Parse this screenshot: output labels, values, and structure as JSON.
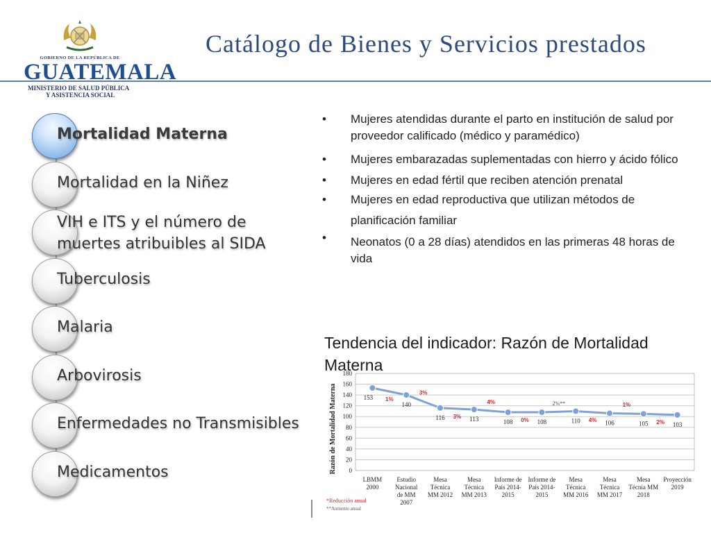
{
  "header": {
    "title": "Catálogo de Bienes y Servicios prestados",
    "logo": {
      "gov": "GOBIERNO DE LA REPÚBLICA DE",
      "name": "GUATEMALA",
      "ministry_line1": "MINISTERIO DE SALUD PÚBLICA",
      "ministry_line2": "Y ASISTENCIA SOCIAL"
    }
  },
  "menu": {
    "items": [
      {
        "label": "Mortalidad Materna",
        "active": true
      },
      {
        "label": "Mortalidad en la Niñez",
        "active": false
      },
      {
        "label": "VIH e ITS y el número de muertes atribuibles al SIDA",
        "line1": "VIH e ITS y el número de",
        "line2": "muertes atribuibles al SIDA",
        "active": false
      },
      {
        "label": "Tuberculosis",
        "active": false
      },
      {
        "label": "Malaria",
        "active": false
      },
      {
        "label": "Arbovirosis",
        "active": false
      },
      {
        "label": "Enfermedades no Transmisibles",
        "active": false
      },
      {
        "label": "Medicamentos",
        "active": false
      }
    ]
  },
  "bullets": [
    "Mujeres atendidas durante el parto en institución de salud por proveedor calificado (médico y paramédico)",
    "Mujeres embarazadas suplementadas con hierro y ácido fólico",
    "Mujeres en edad fértil que reciben atención prenatal",
    "Mujeres en edad reproductiva que utilizan métodos de planificación familiar",
    "Neonatos (0 a 28 días) atendidos en las primeras 48 horas de vida"
  ],
  "chart_data": {
    "type": "line",
    "title": "Tendencia del indicador: Razón de Mortalidad Materna",
    "ylabel": "Razón de Mortalidad Materna",
    "xlabel": "",
    "ylim": [
      0,
      180
    ],
    "yticks": [
      0,
      20,
      40,
      60,
      80,
      100,
      120,
      140,
      160,
      180
    ],
    "grid": true,
    "categories": [
      [
        "LBMM",
        "2000"
      ],
      [
        "Estudio",
        "Nacional",
        "de MM",
        "2007"
      ],
      [
        "Mesa",
        "Técnica",
        "MM 2012"
      ],
      [
        "Mesa",
        "Técnica",
        "MM 2013"
      ],
      [
        "Informe de",
        "País 2014-",
        "2015"
      ],
      [
        "Informe de",
        "País 2014-",
        "2015"
      ],
      [
        "Mesa",
        "Técnica",
        "MM 2016"
      ],
      [
        "Mesa",
        "Técnica",
        "MM 2017"
      ],
      [
        "Mesa",
        "Técnia MM",
        "2018"
      ],
      [
        "Proyección",
        "2019"
      ]
    ],
    "series": [
      {
        "values": [
          153,
          140,
          116,
          113,
          108,
          108,
          110,
          106,
          105,
          103
        ],
        "color": "#7ea1d6"
      }
    ],
    "reduction_labels": [
      {
        "after_index": 0,
        "text": "1%",
        "pos": "below"
      },
      {
        "after_index": 1,
        "text": "3%",
        "pos": "above"
      },
      {
        "after_index": 2,
        "text": "3%",
        "pos": "below"
      },
      {
        "after_index": 3,
        "text": "4%",
        "pos": "above"
      },
      {
        "after_index": 4,
        "text": "0%",
        "pos": "below"
      },
      {
        "after_index": 6,
        "text": "4%",
        "pos": "below"
      },
      {
        "after_index": 7,
        "text": "1%",
        "pos": "above"
      },
      {
        "after_index": 8,
        "text": "2%",
        "pos": "below"
      }
    ],
    "annual_increase_label": {
      "after_index": 5,
      "text": "2%**"
    },
    "notes": [
      "*Reducción anual",
      "**Aumento anual"
    ],
    "note_color": "#d9262a"
  }
}
